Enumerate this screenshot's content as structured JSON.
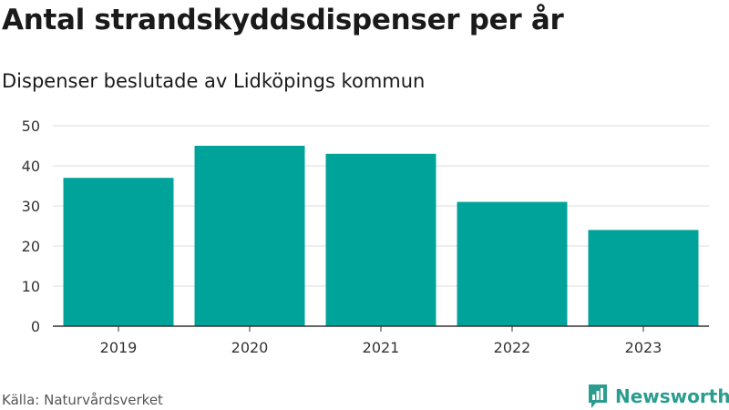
{
  "header": {
    "title": "Antal strandskyddsdispenser per år",
    "subtitle": "Dispenser beslutade av Lidköpings kommun"
  },
  "footer": {
    "source": "Källa: Naturvårdsverket",
    "brand": "Newsworthy",
    "brand_icon": "newsworthy-bar-chart-icon"
  },
  "colors": {
    "bar": "#00a39a",
    "grid": "#dcdcdc",
    "axis": "#333333",
    "brand": "#2a9d8f"
  },
  "chart_data": {
    "type": "bar",
    "categories": [
      "2019",
      "2020",
      "2021",
      "2022",
      "2023"
    ],
    "values": [
      37,
      45,
      43,
      31,
      24
    ],
    "title": "Antal strandskyddsdispenser per år",
    "subtitle": "Dispenser beslutade av Lidköpings kommun",
    "xlabel": "",
    "ylabel": "",
    "ylim": [
      0,
      50
    ],
    "yticks": [
      "0",
      "10",
      "20",
      "30",
      "40",
      "50"
    ],
    "grid": true,
    "legend": "none"
  }
}
